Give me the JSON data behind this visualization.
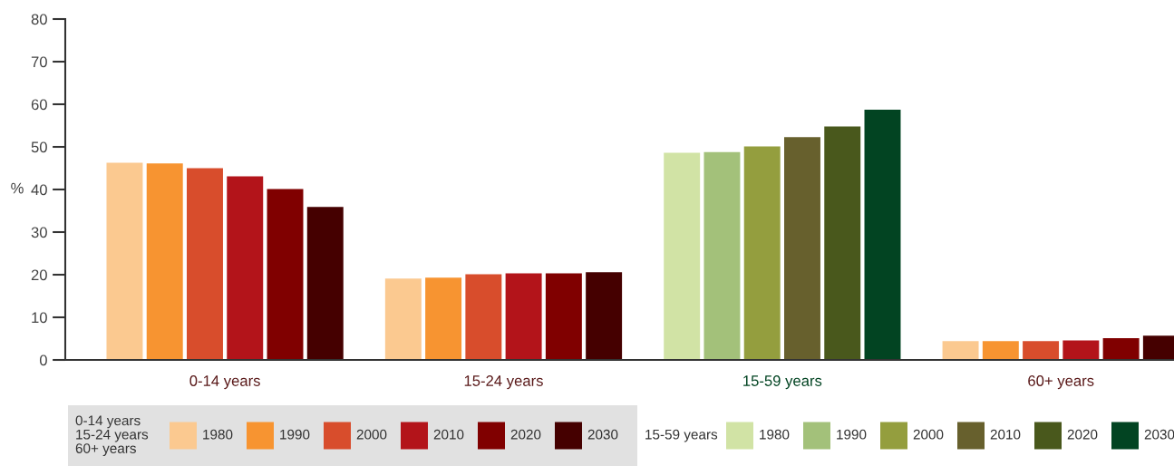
{
  "chart_data": {
    "type": "bar",
    "ylabel": "%",
    "categories": [
      "0-14 years",
      "15-24 years",
      "15-59 years",
      "60+ years"
    ],
    "series": [
      {
        "name": "1980",
        "colors": [
          "#fbc990",
          "#fbc990",
          "#d1e3a5",
          "#fbc990"
        ],
        "values": [
          46.3,
          19.1,
          48.6,
          4.4
        ]
      },
      {
        "name": "1990",
        "colors": [
          "#f79431",
          "#f79431",
          "#a3c17a",
          "#f79431"
        ],
        "values": [
          46.1,
          19.3,
          48.8,
          4.4
        ]
      },
      {
        "name": "2000",
        "colors": [
          "#d84d2c",
          "#d84d2c",
          "#949e3e",
          "#d84d2c"
        ],
        "values": [
          45.0,
          20.1,
          50.1,
          4.4
        ]
      },
      {
        "name": "2010",
        "colors": [
          "#b3141a",
          "#b3141a",
          "#67602d",
          "#b3141a"
        ],
        "values": [
          43.1,
          20.3,
          52.3,
          4.6
        ]
      },
      {
        "name": "2020",
        "colors": [
          "#800000",
          "#800000",
          "#49581c",
          "#800000"
        ],
        "values": [
          40.1,
          20.3,
          54.8,
          5.1
        ]
      },
      {
        "name": "2030",
        "colors": [
          "#450000",
          "#450000",
          "#024422",
          "#450000"
        ],
        "values": [
          35.9,
          20.6,
          58.7,
          5.7
        ]
      }
    ],
    "ylim": [
      0,
      80
    ],
    "yticks": [
      0,
      10,
      20,
      30,
      40,
      50,
      60,
      70,
      80
    ],
    "grid": false,
    "legend": "bottom",
    "annotations": [
      "0-14 years\n15-24 years\n60+ years",
      "15-59 years"
    ]
  }
}
